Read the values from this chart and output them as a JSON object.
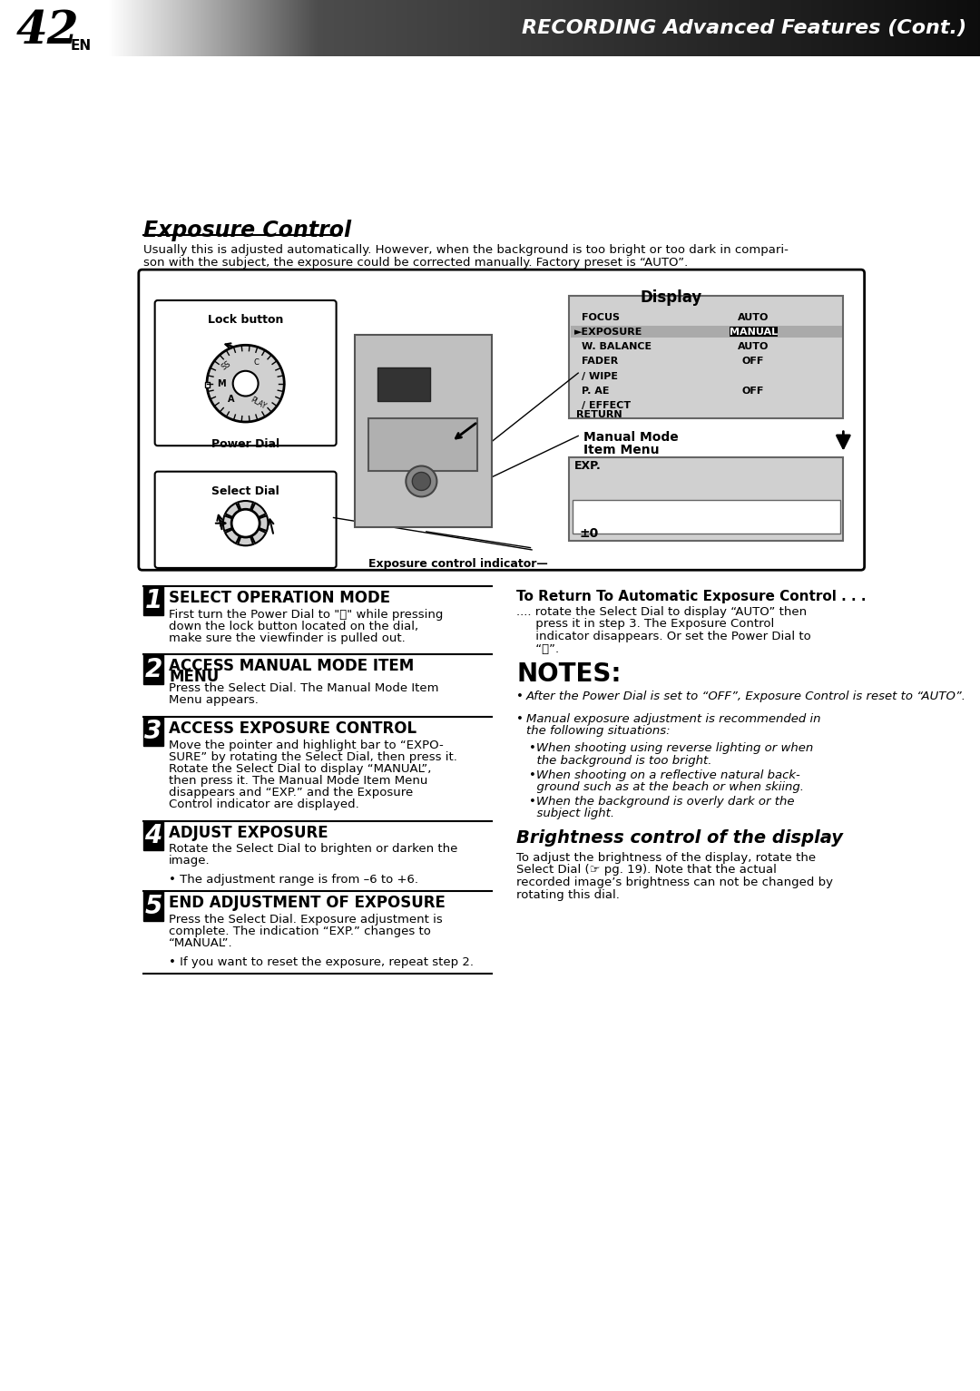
{
  "page_number": "42",
  "page_number_sub": "EN",
  "header_title": "RECORDING Advanced Features (Cont.)",
  "section_title": "Exposure Control",
  "intro_text": "Usually this is adjusted automatically. However, when the background is too bright or too dark in compari-\nson with the subject, the exposure could be corrected manually. Factory preset is “AUTO”.",
  "diagram_label_display": "Display",
  "diagram_label_lock": "Lock button",
  "diagram_label_power": "Power Dial",
  "diagram_label_select": "Select Dial",
  "diagram_label_exposure": "Exposure control indicator",
  "menu_items_left": [
    "FOCUS",
    "EXPOSURE",
    "W. BALANCE",
    "FADER",
    "/ WIPE",
    "P. AE",
    "/ EFFECT"
  ],
  "menu_items_right": [
    "AUTO",
    "MANUAL",
    "AUTO",
    "OFF",
    "",
    "OFF",
    ""
  ],
  "menu_return": "RETURN",
  "menu_mode_label": "Manual Mode\nItem Menu",
  "menu_exp_label": "EXP.",
  "menu_exp_value": "±0",
  "steps": [
    {
      "number": "1",
      "title": "SELECT OPERATION MODE",
      "body": "First turn the Power Dial to \"Ⓜ\" while pressing\ndown the lock button located on the dial,\nmake sure the viewfinder is pulled out."
    },
    {
      "number": "2",
      "title": "ACCESS MANUAL MODE ITEM\nMENU",
      "body": "Press the Select Dial. The Manual Mode Item\nMenu appears."
    },
    {
      "number": "3",
      "title": "ACCESS EXPOSURE CONTROL",
      "body": "Move the pointer and highlight bar to “EXPO-\nSURE” by rotating the Select Dial, then press it.\nRotate the Select Dial to display “MANUAL”,\nthen press it. The Manual Mode Item Menu\ndisappears and “EXP.” and the Exposure\nControl indicator are displayed."
    },
    {
      "number": "4",
      "title": "ADJUST EXPOSURE",
      "body": "Rotate the Select Dial to brighten or darken the\nimage.",
      "note": "The adjustment range is from –6 to +6."
    },
    {
      "number": "5",
      "title": "END ADJUSTMENT OF EXPOSURE",
      "body": "Press the Select Dial. Exposure adjustment is\ncomplete. The indication “EXP.” changes to\n“MANUAL”.",
      "note": "If you want to reset the exposure, repeat step 2."
    }
  ],
  "return_title": "To Return To Automatic Exposure Control . . .",
  "return_body": ".... rotate the Select Dial to display “AUTO” then\n     press it in step 3. The Exposure Control\n     indicator disappears. Or set the Power Dial to\n     “Ⓐ”.",
  "notes_title": "NOTES:",
  "notes": [
    "After the Power Dial is set to “OFF”, Exposure Control is reset to “AUTO”.",
    "Manual exposure adjustment is recommended in\nthe following situations:",
    "•When shooting using reverse lighting or when\n  the background is too bright.",
    "•When shooting on a reflective natural back-\n  ground such as at the beach or when skiing.",
    "•When the background is overly dark or the\n  subject light."
  ],
  "brightness_title": "Brightness control of the display",
  "brightness_body": "To adjust the brightness of the display, rotate the\nSelect Dial (☞ pg. 19). Note that the actual\nrecorded image’s brightness can not be changed by\nrotating this dial.",
  "bg_color": "#ffffff",
  "step_number_bg": "#000000",
  "step_number_color": "#ffffff",
  "border_color": "#000000",
  "diagram_bg": "#e8e8e8"
}
